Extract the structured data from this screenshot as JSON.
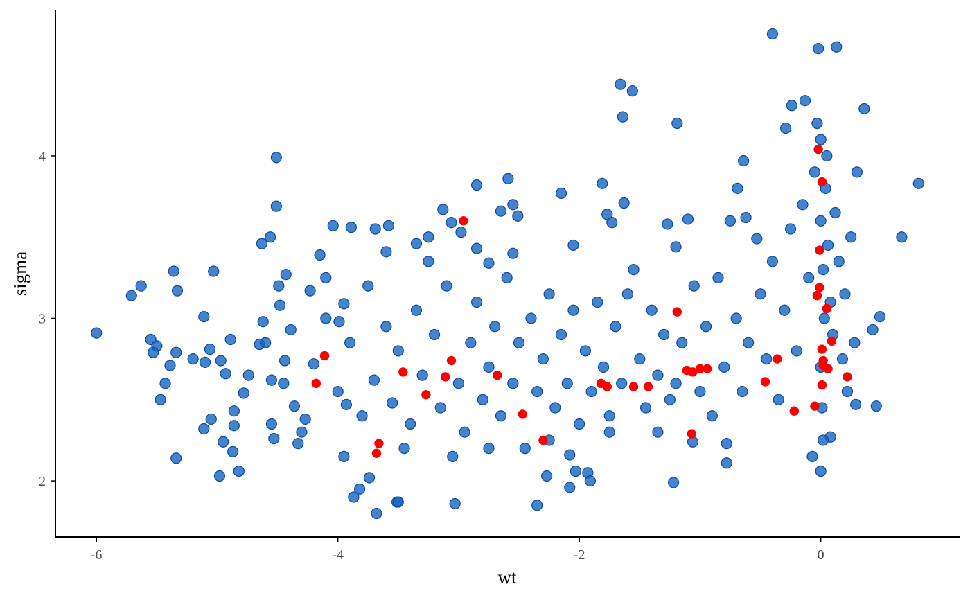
{
  "chart_data": {
    "type": "scatter",
    "x_label": "wt",
    "y_label": "sigma",
    "xlim": [
      -6.34,
      1.15
    ],
    "ylim": [
      1.655,
      4.895
    ],
    "xticks": [
      -6,
      -4,
      -2,
      0
    ],
    "yticks": [
      2,
      3,
      4
    ],
    "grid": false,
    "series": [
      {
        "color": "#1565c0",
        "x": [
          -6.0,
          -5.71,
          -5.63,
          -5.55,
          -5.5,
          -5.53,
          -5.47,
          -5.43,
          -5.39,
          -5.36,
          -5.34,
          -5.33,
          -5.34,
          -5.2,
          -5.11,
          -5.11,
          -5.1,
          -5.06,
          -5.05,
          -5.03,
          -4.97,
          -4.98,
          -4.95,
          -4.93,
          -4.89,
          -4.87,
          -4.86,
          -4.82,
          -4.86,
          -4.78,
          -4.74,
          -4.65,
          -4.63,
          -4.56,
          -4.51,
          -4.51,
          -4.62,
          -4.55,
          -4.53,
          -4.49,
          -4.48,
          -4.43,
          -4.44,
          -4.39,
          -4.36,
          -4.33,
          -4.27,
          -4.23,
          -4.15,
          -4.1,
          -4.04,
          -3.99,
          -3.95,
          -3.89,
          -3.93,
          -3.87,
          -3.82,
          -3.74,
          -3.69,
          -3.68,
          -3.58,
          -3.6,
          -3.51,
          -3.5,
          -3.35,
          -3.25,
          -3.13,
          -3.06,
          -2.98,
          -3.03,
          -2.85,
          -2.85,
          -2.75,
          -2.65,
          -2.59,
          -2.55,
          -2.51,
          -2.35,
          -2.27,
          -2.15,
          -2.08,
          -2.03,
          -2.08,
          -1.93,
          -1.91,
          -1.81,
          -1.77,
          -1.66,
          -1.56,
          -1.64,
          -1.63,
          -1.73,
          -1.19,
          -1.27,
          -1.1,
          -1.2,
          -1.22,
          -1.06,
          -0.64,
          -0.69,
          -0.62,
          -0.75,
          -0.53,
          -0.78,
          -0.78,
          -0.4,
          -0.02,
          0.13,
          -0.24,
          -0.13,
          -0.29,
          0.36,
          0.81,
          0.67,
          0.49,
          0.43,
          0.46,
          0.29,
          0.0,
          -0.07,
          0.08,
          -4.2,
          -4.0,
          -3.9,
          -3.8,
          -3.7,
          -3.6,
          -3.55,
          -3.5,
          -3.4,
          -3.35,
          -3.3,
          -3.2,
          -3.15,
          -3.1,
          -3.0,
          -2.95,
          -2.9,
          -2.85,
          -2.8,
          -2.75,
          -2.7,
          -2.65,
          -2.6,
          -2.55,
          -2.5,
          -2.45,
          -2.4,
          -2.35,
          -2.3,
          -2.25,
          -2.2,
          -2.15,
          -2.1,
          -2.05,
          -2.0,
          -1.95,
          -1.9,
          -1.85,
          -1.8,
          -1.75,
          -1.7,
          -1.65,
          -1.6,
          -1.5,
          -1.45,
          -1.4,
          -1.35,
          -1.3,
          -1.25,
          -1.15,
          -1.05,
          -1.0,
          -0.95,
          -0.9,
          -0.85,
          -0.8,
          -0.7,
          -0.65,
          -0.6,
          -0.5,
          -0.45,
          -0.4,
          -0.35,
          -0.3,
          -0.25,
          -0.2,
          -0.15,
          -0.1,
          -0.05,
          0,
          0,
          0.02,
          0.03,
          0,
          0.01,
          0.02,
          0.04,
          0.06,
          0.08,
          0.1,
          0.12,
          0.15,
          0.18,
          0.2,
          0.25,
          0.3,
          0.28,
          0.22,
          -0.03,
          0.05,
          -4.3,
          -4.1,
          -3.95,
          -3.75,
          -3.45,
          -3.25,
          -3.05,
          -2.75,
          -2.55,
          -2.25,
          -2.05,
          -1.75,
          -1.55,
          -1.35,
          -1.2,
          -4.45,
          -4.6,
          -4.55
        ],
        "y": [
          2.91,
          3.14,
          3.2,
          2.87,
          2.83,
          2.79,
          2.5,
          2.6,
          2.71,
          3.29,
          2.79,
          3.17,
          2.14,
          2.75,
          2.32,
          3.01,
          2.73,
          2.81,
          2.38,
          3.29,
          2.74,
          2.03,
          2.24,
          2.66,
          2.87,
          2.18,
          2.34,
          2.06,
          2.43,
          2.54,
          2.65,
          2.84,
          3.46,
          3.5,
          3.69,
          3.99,
          2.98,
          2.62,
          2.26,
          3.2,
          3.08,
          3.27,
          2.74,
          2.93,
          2.46,
          2.23,
          2.38,
          3.17,
          3.39,
          3.25,
          3.57,
          2.98,
          3.09,
          3.56,
          2.47,
          1.9,
          1.95,
          2.02,
          3.55,
          1.8,
          3.57,
          3.41,
          1.87,
          1.87,
          3.46,
          3.5,
          3.67,
          3.59,
          3.53,
          1.86,
          3.43,
          3.82,
          3.34,
          3.66,
          3.86,
          3.7,
          3.63,
          1.85,
          2.03,
          3.77,
          2.16,
          2.06,
          1.96,
          2.05,
          2.0,
          3.83,
          3.64,
          4.44,
          4.4,
          4.24,
          3.71,
          3.59,
          4.2,
          3.58,
          3.61,
          3.44,
          1.99,
          2.24,
          3.97,
          3.8,
          3.62,
          3.6,
          3.49,
          2.23,
          2.11,
          4.75,
          4.66,
          4.67,
          4.31,
          4.34,
          4.17,
          4.29,
          3.83,
          3.5,
          3.01,
          2.93,
          2.46,
          2.47,
          2.06,
          2.15,
          2.27,
          2.72,
          2.55,
          2.85,
          2.4,
          2.62,
          2.95,
          2.48,
          2.8,
          2.35,
          3.05,
          2.65,
          2.9,
          2.45,
          3.2,
          2.6,
          2.3,
          2.85,
          3.1,
          2.5,
          2.7,
          2.95,
          2.4,
          3.25,
          2.6,
          2.85,
          2.2,
          3.0,
          2.55,
          2.75,
          3.15,
          2.45,
          2.9,
          2.6,
          3.05,
          2.35,
          2.8,
          2.55,
          3.1,
          2.7,
          2.4,
          2.95,
          2.6,
          3.15,
          2.75,
          2.45,
          3.05,
          2.65,
          2.9,
          2.5,
          2.85,
          3.2,
          2.55,
          2.95,
          2.4,
          3.25,
          2.7,
          3.0,
          2.55,
          2.85,
          3.15,
          2.75,
          3.35,
          2.5,
          3.05,
          3.55,
          2.8,
          3.7,
          3.25,
          3.9,
          4.1,
          3.6,
          3.3,
          3.0,
          2.7,
          2.45,
          2.25,
          3.8,
          3.45,
          3.1,
          2.9,
          3.65,
          3.35,
          2.75,
          3.15,
          3.5,
          3.9,
          2.85,
          2.55,
          4.2,
          4.0,
          2.3,
          3.0,
          2.15,
          3.2,
          2.2,
          3.35,
          2.15,
          2.2,
          3.4,
          2.25,
          3.45,
          2.3,
          3.3,
          2.3,
          2.6,
          2.6,
          2.85,
          2.35
        ]
      },
      {
        "color": "#ff0000",
        "x": [
          -2.96,
          -4.11,
          -4.18,
          -3.46,
          -3.27,
          -3.06,
          -3.11,
          -3.66,
          -3.68,
          -2.68,
          -2.47,
          -2.3,
          -1.82,
          -1.77,
          -1.55,
          -1.43,
          -1.19,
          -1.11,
          -1.06,
          -1.0,
          -0.94,
          -1.07,
          -0.36,
          -0.46,
          -0.22,
          -0.05,
          -0.02,
          0.01,
          -0.01,
          -0.01,
          -0.03,
          0.05,
          0.09,
          0.01,
          0.02,
          0.02,
          0.06,
          0.01,
          0.22
        ],
        "y": [
          3.6,
          2.77,
          2.6,
          2.67,
          2.53,
          2.74,
          2.64,
          2.23,
          2.17,
          2.65,
          2.41,
          2.25,
          2.6,
          2.58,
          2.58,
          2.58,
          3.04,
          2.68,
          2.67,
          2.69,
          2.69,
          2.29,
          2.75,
          2.61,
          2.43,
          2.46,
          4.04,
          3.84,
          3.42,
          3.19,
          3.14,
          3.06,
          2.86,
          2.81,
          2.74,
          2.71,
          2.69,
          2.59,
          2.64
        ]
      }
    ]
  }
}
